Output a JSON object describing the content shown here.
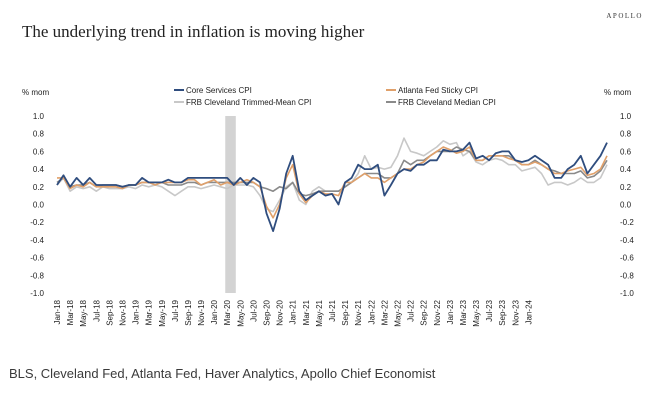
{
  "brand": "APOLLO",
  "source": "BLS, Cleveland Fed, Atlanta Fed, Haver Analytics, Apollo Chief Economist",
  "chart_data": {
    "type": "line",
    "title": "The underlying trend in inflation is moving higher",
    "ylabel_left": "% mom",
    "ylabel_right": "% mom",
    "ylim": [
      -1.0,
      1.0
    ],
    "yticks": [
      "1.0",
      "0.8",
      "0.6",
      "0.4",
      "0.2",
      "0.0",
      "-0.2",
      "-0.4",
      "-0.6",
      "-0.8",
      "-1.0"
    ],
    "x_start": "Jan-18",
    "x_tick_labels": [
      "Jan-18",
      "Mar-18",
      "May-18",
      "Jul-18",
      "Sep-18",
      "Nov-18",
      "Jan-19",
      "Mar-19",
      "May-19",
      "Jul-19",
      "Sep-19",
      "Nov-19",
      "Jan-20",
      "Mar-20",
      "May-20",
      "Jul-20",
      "Sep-20",
      "Nov-20",
      "Jan-21",
      "Mar-21",
      "May-21",
      "Jul-21",
      "Sep-21",
      "Nov-21",
      "Jan-22",
      "Mar-22",
      "May-22",
      "Jul-22",
      "Sep-22",
      "Nov-22",
      "Jan-23",
      "Mar-23",
      "May-23",
      "Jul-23",
      "Sep-23",
      "Nov-23",
      "Jan-24"
    ],
    "recession_shading": [
      "Mar-20",
      "Apr-20"
    ],
    "legend_position": "top",
    "series": [
      {
        "name": "Core Services CPI",
        "color": "#2f4d7e",
        "values": [
          0.22,
          0.33,
          0.2,
          0.3,
          0.22,
          0.3,
          0.22,
          0.22,
          0.22,
          0.22,
          0.2,
          0.22,
          0.22,
          0.3,
          0.25,
          0.25,
          0.25,
          0.28,
          0.25,
          0.25,
          0.3,
          0.3,
          0.3,
          0.3,
          0.3,
          0.3,
          0.3,
          0.22,
          0.3,
          0.22,
          0.3,
          0.25,
          -0.1,
          -0.3,
          -0.05,
          0.35,
          0.55,
          0.15,
          0.05,
          0.1,
          0.15,
          0.1,
          0.12,
          0.0,
          0.25,
          0.3,
          0.45,
          0.4,
          0.4,
          0.45,
          0.1,
          0.22,
          0.35,
          0.4,
          0.38,
          0.45,
          0.45,
          0.5,
          0.5,
          0.62,
          0.6,
          0.6,
          0.62,
          0.7,
          0.52,
          0.55,
          0.5,
          0.58,
          0.6,
          0.6,
          0.5,
          0.48,
          0.5,
          0.55,
          0.5,
          0.45,
          0.3,
          0.3,
          0.4,
          0.45,
          0.55,
          0.35,
          0.45,
          0.55,
          0.7
        ]
      },
      {
        "name": "Atlanta Fed Sticky CPI",
        "color": "#e0a06a",
        "values": [
          0.3,
          0.3,
          0.18,
          0.22,
          0.2,
          0.25,
          0.2,
          0.2,
          0.2,
          0.2,
          0.18,
          0.22,
          0.22,
          0.25,
          0.25,
          0.22,
          0.25,
          0.25,
          0.25,
          0.25,
          0.28,
          0.28,
          0.22,
          0.25,
          0.28,
          0.22,
          0.25,
          0.22,
          0.25,
          0.28,
          0.25,
          0.2,
          -0.02,
          -0.15,
          0.0,
          0.3,
          0.45,
          0.12,
          0.02,
          0.1,
          0.15,
          0.12,
          0.12,
          0.1,
          0.25,
          0.25,
          0.3,
          0.35,
          0.3,
          0.3,
          0.25,
          0.3,
          0.35,
          0.4,
          0.4,
          0.45,
          0.48,
          0.55,
          0.6,
          0.65,
          0.62,
          0.58,
          0.6,
          0.65,
          0.5,
          0.5,
          0.55,
          0.55,
          0.55,
          0.52,
          0.5,
          0.45,
          0.45,
          0.48,
          0.45,
          0.4,
          0.35,
          0.35,
          0.38,
          0.4,
          0.42,
          0.33,
          0.35,
          0.4,
          0.55
        ]
      },
      {
        "name": "FRB Cleveland Trimmed-Mean CPI",
        "color": "#c8c8c8",
        "values": [
          0.22,
          0.3,
          0.15,
          0.2,
          0.18,
          0.2,
          0.15,
          0.2,
          0.18,
          0.18,
          0.18,
          0.2,
          0.18,
          0.22,
          0.2,
          0.22,
          0.2,
          0.15,
          0.1,
          0.15,
          0.2,
          0.2,
          0.18,
          0.2,
          0.22,
          0.2,
          0.18,
          0.22,
          0.22,
          0.22,
          0.2,
          0.1,
          -0.05,
          -0.08,
          0.05,
          0.2,
          0.25,
          0.05,
          0.0,
          0.15,
          0.2,
          0.15,
          0.15,
          0.15,
          0.2,
          0.25,
          0.35,
          0.55,
          0.4,
          0.42,
          0.4,
          0.42,
          0.55,
          0.75,
          0.6,
          0.58,
          0.55,
          0.6,
          0.65,
          0.72,
          0.68,
          0.7,
          0.55,
          0.6,
          0.48,
          0.45,
          0.5,
          0.52,
          0.5,
          0.45,
          0.45,
          0.38,
          0.4,
          0.42,
          0.35,
          0.22,
          0.25,
          0.25,
          0.22,
          0.25,
          0.3,
          0.25,
          0.25,
          0.3,
          0.45
        ]
      },
      {
        "name": "FRB Cleveland Median CPI",
        "color": "#8a8a8a",
        "values": [
          0.25,
          0.3,
          0.2,
          0.22,
          0.22,
          0.25,
          0.2,
          0.22,
          0.22,
          0.22,
          0.2,
          0.22,
          0.22,
          0.25,
          0.25,
          0.25,
          0.25,
          0.22,
          0.22,
          0.22,
          0.25,
          0.25,
          0.22,
          0.25,
          0.25,
          0.25,
          0.25,
          0.25,
          0.25,
          0.25,
          0.25,
          0.2,
          0.18,
          0.15,
          0.2,
          0.18,
          0.25,
          0.12,
          0.1,
          0.12,
          0.15,
          0.15,
          0.15,
          0.15,
          0.2,
          0.25,
          0.3,
          0.35,
          0.35,
          0.35,
          0.3,
          0.3,
          0.35,
          0.5,
          0.45,
          0.5,
          0.5,
          0.55,
          0.6,
          0.6,
          0.6,
          0.65,
          0.62,
          0.6,
          0.5,
          0.5,
          0.55,
          0.55,
          0.55,
          0.55,
          0.5,
          0.45,
          0.45,
          0.5,
          0.45,
          0.4,
          0.38,
          0.35,
          0.35,
          0.35,
          0.38,
          0.3,
          0.32,
          0.38,
          0.5
        ]
      }
    ]
  }
}
